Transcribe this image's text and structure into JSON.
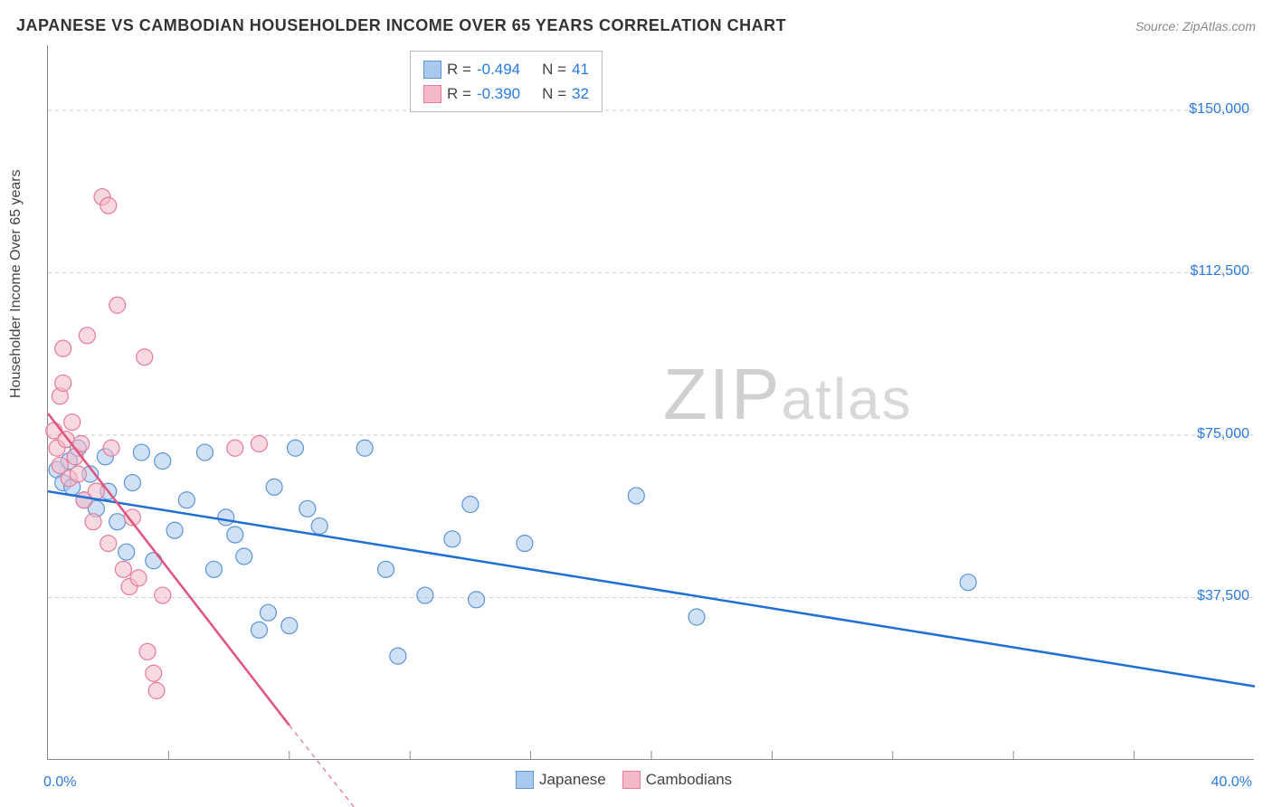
{
  "title": "JAPANESE VS CAMBODIAN HOUSEHOLDER INCOME OVER 65 YEARS CORRELATION CHART",
  "source": "Source: ZipAtlas.com",
  "ylabel": "Householder Income Over 65 years",
  "watermark_zip": "ZIP",
  "watermark_atlas": "atlas",
  "chart": {
    "type": "scatter",
    "xlim": [
      0,
      40
    ],
    "ylim": [
      0,
      165000
    ],
    "x_tick_labels": {
      "left": "0.0%",
      "right": "40.0%"
    },
    "y_ticks": [
      37500,
      75000,
      112500,
      150000
    ],
    "y_tick_labels": [
      "$37,500",
      "$75,000",
      "$112,500",
      "$150,000"
    ],
    "x_minor_ticks": [
      4,
      8,
      12,
      16,
      20,
      24,
      28,
      32,
      36
    ],
    "grid_color": "#cccccc",
    "grid_dash": "4,4",
    "background_color": "#ffffff",
    "marker_radius": 9,
    "marker_opacity": 0.55,
    "series": [
      {
        "name": "Japanese",
        "color_fill": "#a9c9ef",
        "color_stroke": "#5b95d6",
        "R": "-0.494",
        "N": "41",
        "trend": {
          "x1": 0,
          "y1": 62000,
          "x2": 40,
          "y2": 17000,
          "color": "#1f6fd4",
          "width": 2.5
        },
        "points": [
          [
            0.3,
            67000
          ],
          [
            0.5,
            64000
          ],
          [
            0.7,
            69000
          ],
          [
            0.8,
            63000
          ],
          [
            1.0,
            72000
          ],
          [
            1.2,
            60000
          ],
          [
            1.4,
            66000
          ],
          [
            1.6,
            58000
          ],
          [
            1.9,
            70000
          ],
          [
            2.0,
            62000
          ],
          [
            2.3,
            55000
          ],
          [
            2.6,
            48000
          ],
          [
            2.8,
            64000
          ],
          [
            3.1,
            71000
          ],
          [
            3.5,
            46000
          ],
          [
            3.8,
            69000
          ],
          [
            4.2,
            53000
          ],
          [
            4.6,
            60000
          ],
          [
            5.2,
            71000
          ],
          [
            5.5,
            44000
          ],
          [
            5.9,
            56000
          ],
          [
            6.2,
            52000
          ],
          [
            6.5,
            47000
          ],
          [
            7.0,
            30000
          ],
          [
            7.3,
            34000
          ],
          [
            7.5,
            63000
          ],
          [
            8.0,
            31000
          ],
          [
            8.2,
            72000
          ],
          [
            8.6,
            58000
          ],
          [
            9.0,
            54000
          ],
          [
            10.5,
            72000
          ],
          [
            11.2,
            44000
          ],
          [
            11.6,
            24000
          ],
          [
            12.5,
            38000
          ],
          [
            13.4,
            51000
          ],
          [
            14.0,
            59000
          ],
          [
            14.2,
            37000
          ],
          [
            15.8,
            50000
          ],
          [
            19.5,
            61000
          ],
          [
            21.5,
            33000
          ],
          [
            30.5,
            41000
          ]
        ]
      },
      {
        "name": "Cambodians",
        "color_fill": "#f4b9c8",
        "color_stroke": "#e67b9a",
        "R": "-0.390",
        "N": "32",
        "trend": {
          "x1": 0,
          "y1": 80000,
          "x2": 8,
          "y2": 8000,
          "color": "#e0537d",
          "width": 2.5
        },
        "trend_dash": {
          "x1": 8,
          "y1": 8000,
          "x2": 10.5,
          "y2": -14000,
          "color": "#e0537d",
          "width": 1,
          "dash": "5,5"
        },
        "points": [
          [
            0.2,
            76000
          ],
          [
            0.3,
            72000
          ],
          [
            0.4,
            84000
          ],
          [
            0.4,
            68000
          ],
          [
            0.5,
            87000
          ],
          [
            0.5,
            95000
          ],
          [
            0.6,
            74000
          ],
          [
            0.7,
            65000
          ],
          [
            0.8,
            78000
          ],
          [
            0.9,
            70000
          ],
          [
            1.0,
            66000
          ],
          [
            1.1,
            73000
          ],
          [
            1.2,
            60000
          ],
          [
            1.3,
            98000
          ],
          [
            1.5,
            55000
          ],
          [
            1.6,
            62000
          ],
          [
            1.8,
            130000
          ],
          [
            2.0,
            128000
          ],
          [
            2.0,
            50000
          ],
          [
            2.1,
            72000
          ],
          [
            2.3,
            105000
          ],
          [
            2.5,
            44000
          ],
          [
            2.7,
            40000
          ],
          [
            2.8,
            56000
          ],
          [
            3.0,
            42000
          ],
          [
            3.2,
            93000
          ],
          [
            3.3,
            25000
          ],
          [
            3.5,
            20000
          ],
          [
            3.6,
            16000
          ],
          [
            3.8,
            38000
          ],
          [
            6.2,
            72000
          ],
          [
            7.0,
            73000
          ]
        ]
      }
    ]
  },
  "top_legend": {
    "rows": [
      {
        "swatch_fill": "#a9c9ef",
        "swatch_stroke": "#5b95d6",
        "r_label": "R =",
        "r_val": "-0.494",
        "n_label": "N =",
        "n_val": "41"
      },
      {
        "swatch_fill": "#f4b9c8",
        "swatch_stroke": "#e67b9a",
        "r_label": "R =",
        "r_val": "-0.390",
        "n_label": "N =",
        "n_val": "32"
      }
    ]
  },
  "bottom_legend": {
    "items": [
      {
        "swatch_fill": "#a9c9ef",
        "swatch_stroke": "#5b95d6",
        "label": "Japanese"
      },
      {
        "swatch_fill": "#f4b9c8",
        "swatch_stroke": "#e67b9a",
        "label": "Cambodians"
      }
    ]
  }
}
